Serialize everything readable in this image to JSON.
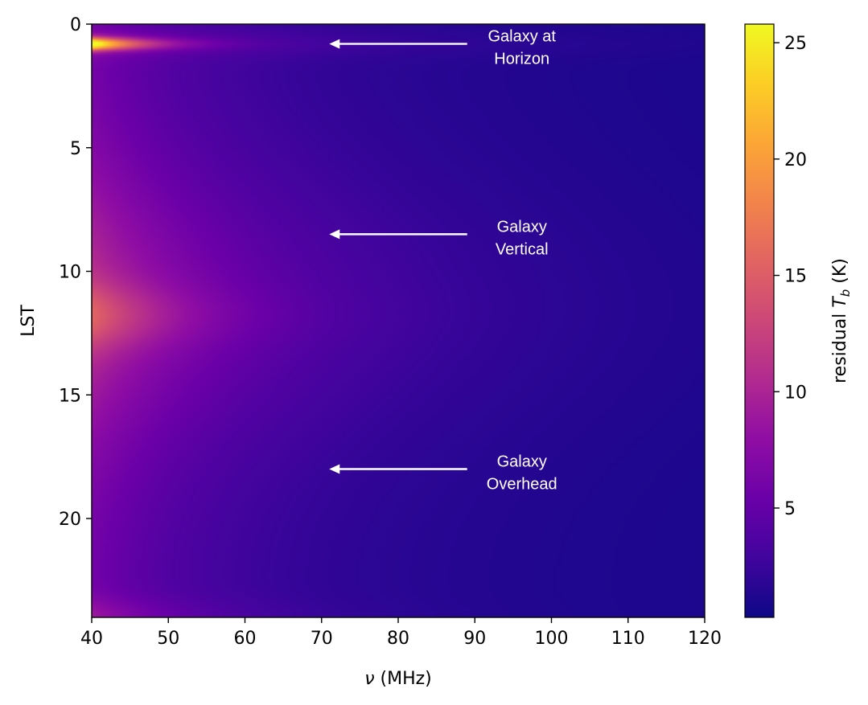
{
  "chart_data": {
    "type": "heatmap",
    "title": "",
    "xlabel_symbol": "ν",
    "xlabel_unit": " (MHz)",
    "ylabel": "LST",
    "xlim": [
      40,
      120
    ],
    "ylim": [
      24,
      0
    ],
    "x_ticks": [
      40,
      50,
      60,
      70,
      80,
      90,
      100,
      110,
      120
    ],
    "y_ticks": [
      0,
      5,
      10,
      15,
      20
    ],
    "colorbar": {
      "label_prefix": "residual ",
      "label_symbol": "T",
      "label_subscript": "b",
      "label_unit": " (K)",
      "range": [
        0.3,
        25.8
      ],
      "ticks": [
        5,
        10,
        15,
        20,
        25
      ],
      "colormap": "plasma"
    },
    "features": [
      {
        "lst": 0.8,
        "peak_K": 25.8,
        "width_h": 0.25
      },
      {
        "lst": 11.8,
        "peak_K": 13.5,
        "width_h": 1.3
      }
    ],
    "annotations": [
      {
        "lines": [
          "Galaxy at",
          "Horizon"
        ],
        "arrow_x": [
          89,
          71
        ],
        "arrow_y": 0.8
      },
      {
        "lines": [
          "Galaxy",
          "Vertical"
        ],
        "arrow_x": [
          89,
          71
        ],
        "arrow_y": 8.5
      },
      {
        "lines": [
          "Galaxy",
          "Overhead"
        ],
        "arrow_x": [
          89,
          71
        ],
        "arrow_y": 18.0
      }
    ]
  }
}
